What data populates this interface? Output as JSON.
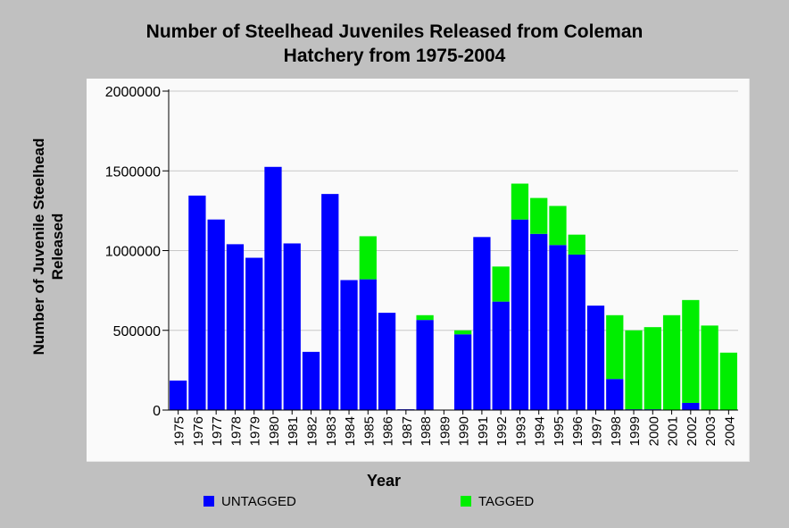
{
  "colors": {
    "untagged": "#0000ff",
    "tagged": "#00ee00",
    "grid": "#c8c8c8",
    "background": "#c0c0c0"
  },
  "chart_data": {
    "type": "bar",
    "stacked": true,
    "title_lines": [
      "Number of Steelhead Juveniles Released from Coleman",
      "Hatchery from 1975-2004"
    ],
    "xlabel": "Year",
    "ylabel_lines": [
      "Number of Juvenile Steelhead",
      "Released"
    ],
    "ylim": [
      0,
      2000000
    ],
    "yticks": [
      "0",
      "500000",
      "1000000",
      "1500000",
      "2000000"
    ],
    "ytick_values": [
      0,
      500000,
      1000000,
      1500000,
      2000000
    ],
    "grid": true,
    "legend_position": "bottom",
    "categories": [
      "1975",
      "1976",
      "1977",
      "1978",
      "1979",
      "1980",
      "1981",
      "1982",
      "1983",
      "1984",
      "1985",
      "1986",
      "1987",
      "1988",
      "1989",
      "1990",
      "1991",
      "1992",
      "1993",
      "1994",
      "1995",
      "1996",
      "1997",
      "1998",
      "1999",
      "2000",
      "2001",
      "2002",
      "2003",
      "2004"
    ],
    "series": [
      {
        "name": "UNTAGGED",
        "color": "#0000ff",
        "values": [
          185000,
          1345000,
          1195000,
          1040000,
          955000,
          1525000,
          1045000,
          365000,
          1355000,
          815000,
          820000,
          610000,
          5000,
          565000,
          0,
          475000,
          1085000,
          680000,
          1195000,
          1105000,
          1035000,
          975000,
          655000,
          195000,
          5000,
          5000,
          0,
          45000,
          0,
          0
        ]
      },
      {
        "name": "TAGGED",
        "color": "#00ee00",
        "values": [
          0,
          0,
          0,
          0,
          0,
          0,
          0,
          0,
          0,
          0,
          270000,
          0,
          0,
          30000,
          0,
          25000,
          0,
          220000,
          225000,
          225000,
          245000,
          125000,
          0,
          400000,
          495000,
          515000,
          595000,
          645000,
          530000,
          360000
        ]
      }
    ]
  }
}
